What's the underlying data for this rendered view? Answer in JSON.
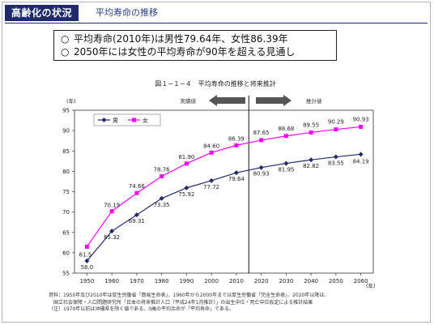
{
  "header": {
    "tag": "高齢化の状況",
    "subtitle": "平均寿命の推移"
  },
  "summary": [
    {
      "bullet": "○",
      "text": "平均寿命(2010年)は男性79.64年、女性86.39年"
    },
    {
      "bullet": "○",
      "text": "2050年には女性の平均寿命が90年を超える見通し"
    }
  ],
  "figure_title": "図１−１−４　平均寿命の推移と将来推計",
  "arrows": {
    "left_label": "実績値",
    "right_label": "推計値"
  },
  "notes": [
    "資料：1950年及び2010年は厚生労働省「簡易生命表」、1960年から2000年までは厚生労働省「完全生命表」、2020年以降は、",
    "　国立社会保障・人口問題研究所「日本の将来推計人口（平成24年1月推計）」の出生中位・死亡中位仮定による推計結果",
    "（注）1970年以前は沖縄県を除く値である。0歳の平均余命が「平均寿命」である。"
  ],
  "colors": {
    "male": "#1f2a6b",
    "female": "#ff00ff",
    "header_bg": "#1f2a6b"
  },
  "chart_data": {
    "type": "line",
    "title": "",
    "ylabel": "(年)",
    "xlabel": "(年)",
    "ylim": [
      55,
      95
    ],
    "yticks": [
      55,
      60,
      65,
      70,
      75,
      80,
      85,
      90,
      95
    ],
    "x": [
      1950,
      1960,
      1970,
      1980,
      1990,
      2000,
      2010,
      2020,
      2030,
      2040,
      2050,
      2060
    ],
    "actual_until": 2010,
    "legend_position": "top-left",
    "grid": false,
    "series": [
      {
        "name": "男",
        "values": [
          58.0,
          65.32,
          69.31,
          73.35,
          75.92,
          77.72,
          79.64,
          80.93,
          81.95,
          82.82,
          83.55,
          84.19
        ],
        "labels": [
          "58.0",
          "65.32",
          "69.31",
          "73.35",
          "75.92",
          "77.72",
          "79.64",
          "80.93",
          "81.95",
          "82.82",
          "83.55",
          "84.19"
        ]
      },
      {
        "name": "女",
        "values": [
          61.5,
          70.19,
          74.66,
          78.76,
          81.9,
          84.6,
          86.39,
          87.65,
          88.68,
          89.55,
          90.29,
          90.93
        ],
        "labels": [
          "61.5",
          "70.19",
          "74.66",
          "78.76",
          "81.90",
          "84.60",
          "86.39",
          "87.65",
          "88.68",
          "89.55",
          "90.29",
          "90.93"
        ]
      }
    ]
  }
}
